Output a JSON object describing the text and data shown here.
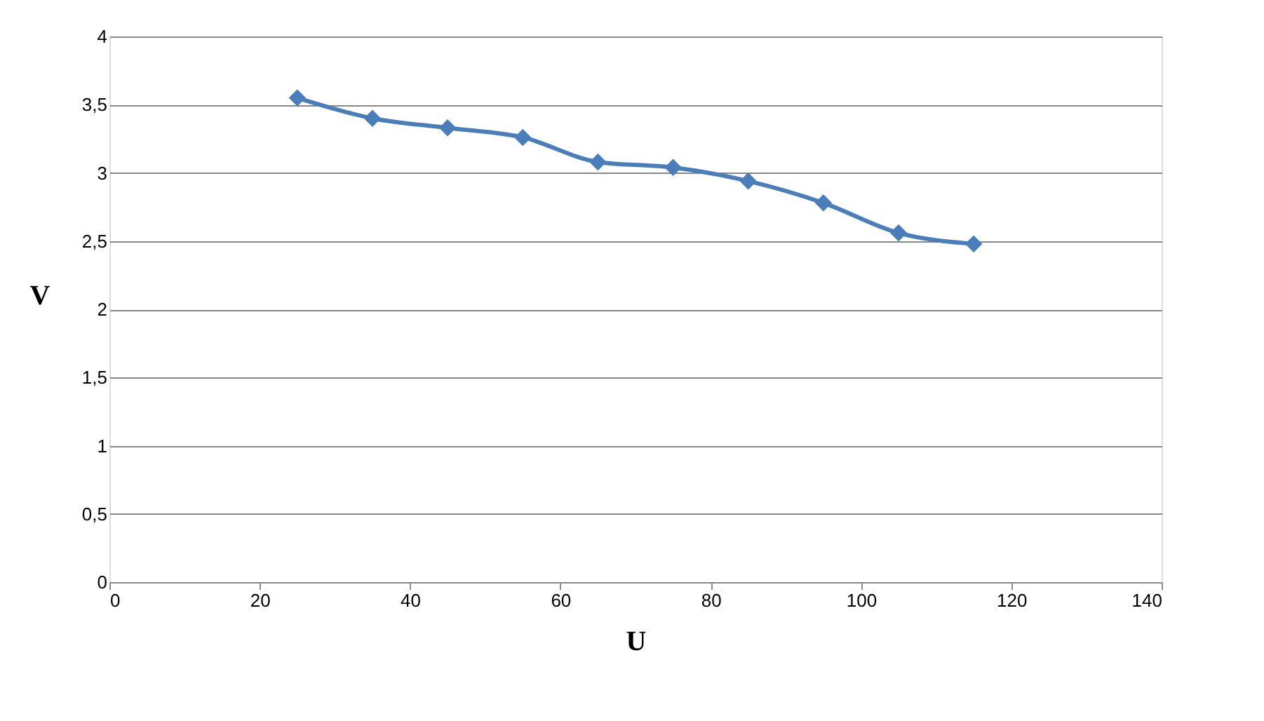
{
  "chart_data": {
    "type": "line",
    "xlabel": "U",
    "ylabel": "V",
    "x": [
      25,
      35,
      45,
      55,
      65,
      75,
      85,
      95,
      105,
      115
    ],
    "series": [
      {
        "color": "#4a7ebb",
        "values": [
          3.55,
          3.4,
          3.33,
          3.26,
          3.08,
          3.04,
          2.94,
          2.78,
          2.56,
          2.48
        ]
      }
    ],
    "xlim": [
      0,
      140
    ],
    "xticks": [
      0,
      20,
      40,
      60,
      80,
      100,
      120,
      140
    ],
    "ylim": [
      0,
      4
    ],
    "yticks": [
      0,
      {
        "value": 0.5,
        "label": "0,5"
      },
      1,
      {
        "value": 1.5,
        "label": "1,5"
      },
      2,
      {
        "value": 2.5,
        "label": "2,5"
      },
      3,
      {
        "value": 3.5,
        "label": "3,5"
      },
      4
    ],
    "grid": "y",
    "marker": "diamond",
    "line_style": "solid"
  }
}
